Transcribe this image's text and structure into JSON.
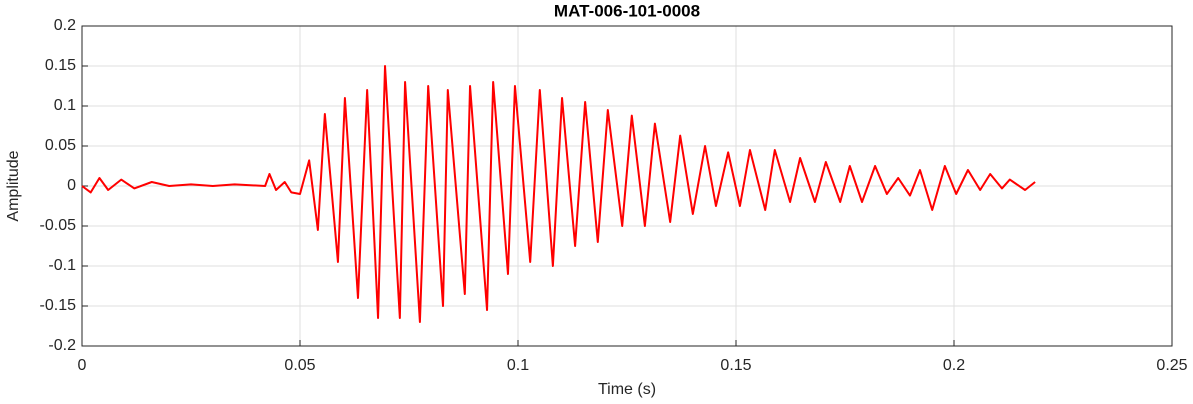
{
  "chart_data": {
    "type": "line",
    "title": "MAT-006-101-0008",
    "x_label": "Time (s)",
    "y_label": "Amplitude",
    "x": [
      0,
      0.002,
      0.004,
      0.006,
      0.009,
      0.012,
      0.016,
      0.02,
      0.025,
      0.03,
      0.035,
      0.042,
      0.043,
      0.0445,
      0.0465,
      0.048,
      0.05,
      0.0521,
      0.0541,
      0.0557,
      0.0587,
      0.0603,
      0.0633,
      0.0654,
      0.0679,
      0.0695,
      0.0729,
      0.0741,
      0.0775,
      0.0794,
      0.0828,
      0.0839,
      0.0878,
      0.089,
      0.0929,
      0.0943,
      0.0977,
      0.0993,
      0.1028,
      0.105,
      0.108,
      0.1101,
      0.1131,
      0.1154,
      0.1183,
      0.1206,
      0.1239,
      0.1261,
      0.1291,
      0.1314,
      0.1349,
      0.1372,
      0.1401,
      0.1429,
      0.1454,
      0.1482,
      0.1509,
      0.1532,
      0.1567,
      0.1589,
      0.1624,
      0.1647,
      0.1681,
      0.1706,
      0.1739,
      0.1761,
      0.1789,
      0.1819,
      0.1846,
      0.1872,
      0.1899,
      0.1922,
      0.195,
      0.1979,
      0.2005,
      0.2032,
      0.206,
      0.2083,
      0.211,
      0.2128,
      0.2163,
      0.2186
    ],
    "series": [
      {
        "name": "Amplitude",
        "color": "#ff0000",
        "values": [
          0,
          -0.008,
          0.01,
          -0.005,
          0.008,
          -0.003,
          0.005,
          0,
          0.002,
          0,
          0.002,
          0,
          0.015,
          -0.005,
          0.005,
          -0.008,
          -0.01,
          0.032,
          -0.055,
          0.09,
          -0.095,
          0.11,
          -0.14,
          0.12,
          -0.165,
          0.15,
          -0.165,
          0.13,
          -0.17,
          0.125,
          -0.15,
          0.12,
          -0.135,
          0.125,
          -0.155,
          0.13,
          -0.11,
          0.125,
          -0.095,
          0.12,
          -0.1,
          0.11,
          -0.075,
          0.105,
          -0.07,
          0.095,
          -0.05,
          0.088,
          -0.05,
          0.078,
          -0.045,
          0.063,
          -0.035,
          0.05,
          -0.025,
          0.042,
          -0.025,
          0.045,
          -0.03,
          0.045,
          -0.02,
          0.035,
          -0.02,
          0.03,
          -0.02,
          0.025,
          -0.02,
          0.025,
          -0.01,
          0.01,
          -0.012,
          0.02,
          -0.03,
          0.025,
          -0.01,
          0.02,
          -0.005,
          0.015,
          -0.003,
          0.008,
          -0.005,
          0.005
        ]
      }
    ],
    "xlim": [
      0,
      0.25
    ],
    "xticks": [
      0,
      0.05,
      0.1,
      0.15,
      0.2,
      0.25
    ],
    "ylim": [
      -0.2,
      0.2
    ],
    "yticks": [
      -0.2,
      -0.15,
      -0.1,
      -0.05,
      0,
      0.05,
      0.1,
      0.15,
      0.2
    ],
    "grid": true
  }
}
